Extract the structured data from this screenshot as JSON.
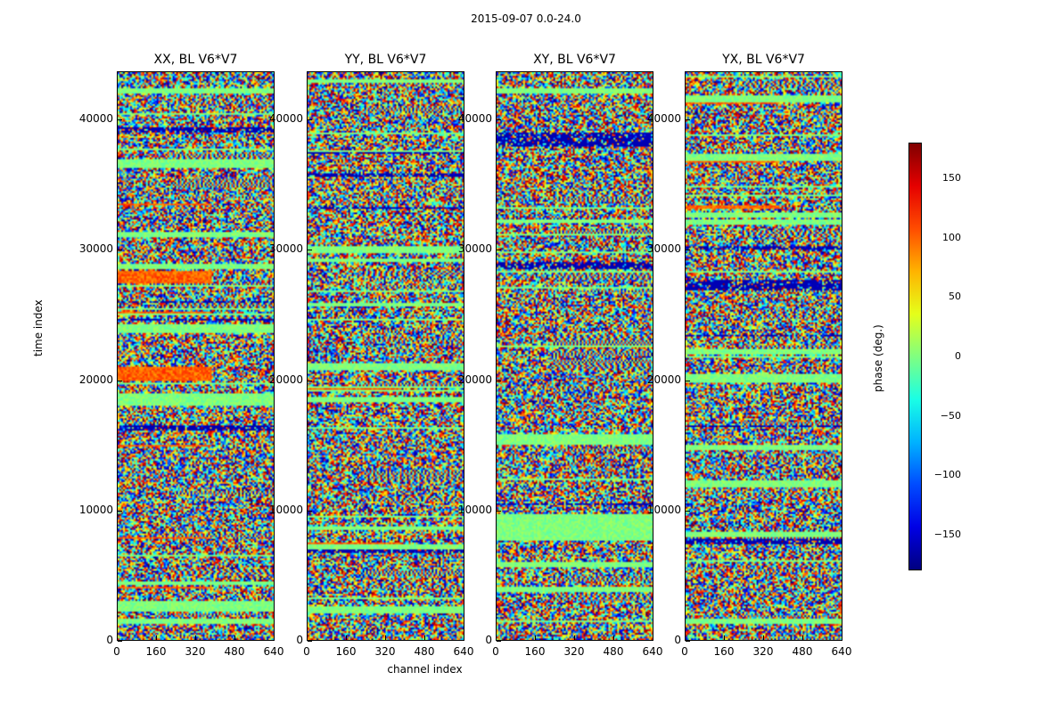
{
  "chart_data": {
    "type": "heatmap",
    "suptitle": "2015-09-07 0.0-24.0",
    "panels": [
      {
        "title": "XX, BL V6*V7",
        "orange_bias": 0.55
      },
      {
        "title": "YY, BL V6*V7",
        "orange_bias": 0.1
      },
      {
        "title": "XY, BL V6*V7",
        "orange_bias": 0.05
      },
      {
        "title": "YX, BL V6*V7",
        "orange_bias": 0.15
      }
    ],
    "xlabel": "channel index",
    "ylabel": "time index",
    "xticks": [
      "0",
      "160",
      "320",
      "480",
      "640"
    ],
    "xlim": [
      0,
      640
    ],
    "yticks": [
      "0",
      "10000",
      "20000",
      "30000",
      "40000"
    ],
    "ylim": [
      0,
      43700
    ],
    "colorbar": {
      "label": "phase (deg.)",
      "ticks": [
        "150",
        "100",
        "50",
        "0",
        "−50",
        "−100",
        "−150"
      ],
      "range": [
        -180,
        180
      ],
      "tick_values": [
        150,
        100,
        50,
        0,
        -50,
        -100,
        -150
      ]
    }
  }
}
